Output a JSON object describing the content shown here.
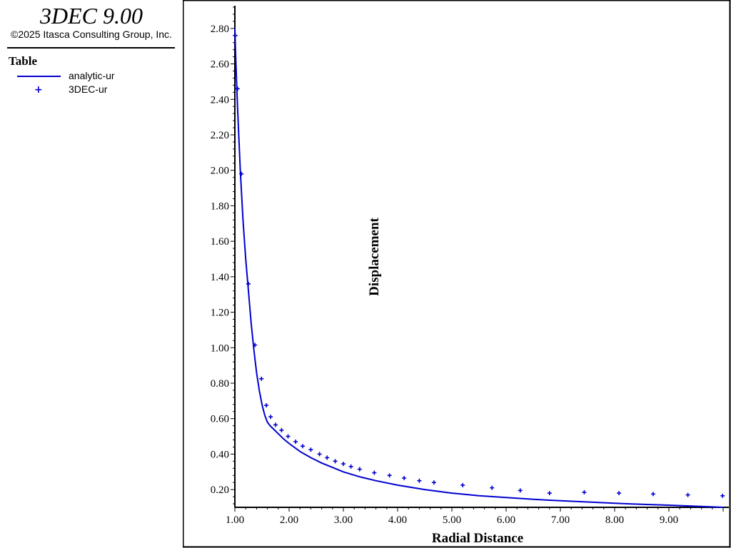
{
  "app": {
    "title": "3DEC 9.00",
    "copyright": "©2025 Itasca Consulting Group, Inc."
  },
  "legend": {
    "title": "Table",
    "items": [
      {
        "label": "analytic-ur",
        "color": "#0000d0",
        "symbol": "line-icon"
      },
      {
        "label": "3DEC-ur",
        "color": "#0000d0",
        "symbol": "plus-icon"
      }
    ]
  },
  "chart_data": {
    "type": "line",
    "xlabel": "Radial Distance",
    "ylabel": "Displacement",
    "xlim": [
      1.0,
      10.0
    ],
    "ylim": [
      0.1,
      2.92
    ],
    "xticks": [
      "1.00",
      "2.00",
      "3.00",
      "4.00",
      "5.00",
      "6.00",
      "7.00",
      "8.00",
      "9.00"
    ],
    "yticks": [
      "0.20",
      "0.40",
      "0.60",
      "0.80",
      "1.00",
      "1.20",
      "1.40",
      "1.60",
      "1.80",
      "2.00",
      "2.20",
      "2.40",
      "2.60",
      "2.80"
    ],
    "grid": false,
    "series": [
      {
        "name": "analytic-ur",
        "color": "#0000d0",
        "style": "line",
        "x": [
          1.0,
          1.02,
          1.05,
          1.1,
          1.15,
          1.2,
          1.25,
          1.3,
          1.35,
          1.4,
          1.45,
          1.5,
          1.55,
          1.6,
          1.65,
          1.7,
          1.8,
          1.9,
          2.0,
          2.2,
          2.4,
          2.6,
          2.8,
          3.0,
          3.3,
          3.6,
          4.0,
          4.5,
          5.0,
          5.5,
          6.0,
          6.5,
          7.0,
          7.5,
          8.0,
          8.5,
          9.0,
          9.5,
          10.0
        ],
        "y": [
          2.8,
          2.6,
          2.35,
          2.0,
          1.72,
          1.5,
          1.32,
          1.14,
          0.99,
          0.86,
          0.76,
          0.68,
          0.62,
          0.58,
          0.56,
          0.545,
          0.515,
          0.485,
          0.46,
          0.415,
          0.38,
          0.35,
          0.325,
          0.3,
          0.272,
          0.25,
          0.225,
          0.2,
          0.18,
          0.165,
          0.155,
          0.145,
          0.137,
          0.13,
          0.123,
          0.117,
          0.112,
          0.106,
          0.1
        ]
      },
      {
        "name": "3DEC-ur",
        "color": "#0000d0",
        "style": "plus",
        "x": [
          1.01,
          1.05,
          1.12,
          1.25,
          1.37,
          1.49,
          1.58,
          1.66,
          1.75,
          1.86,
          1.98,
          2.12,
          2.25,
          2.4,
          2.56,
          2.7,
          2.85,
          3.0,
          3.14,
          3.3,
          3.57,
          3.85,
          4.12,
          4.4,
          4.67,
          5.2,
          5.74,
          6.26,
          6.8,
          7.44,
          8.08,
          8.71,
          9.35,
          9.99
        ],
        "y": [
          2.76,
          2.46,
          1.98,
          1.36,
          1.015,
          0.825,
          0.675,
          0.61,
          0.565,
          0.535,
          0.5,
          0.47,
          0.445,
          0.425,
          0.4,
          0.38,
          0.36,
          0.345,
          0.33,
          0.315,
          0.295,
          0.28,
          0.265,
          0.25,
          0.24,
          0.225,
          0.21,
          0.195,
          0.18,
          0.185,
          0.18,
          0.175,
          0.17,
          0.165
        ]
      }
    ]
  }
}
